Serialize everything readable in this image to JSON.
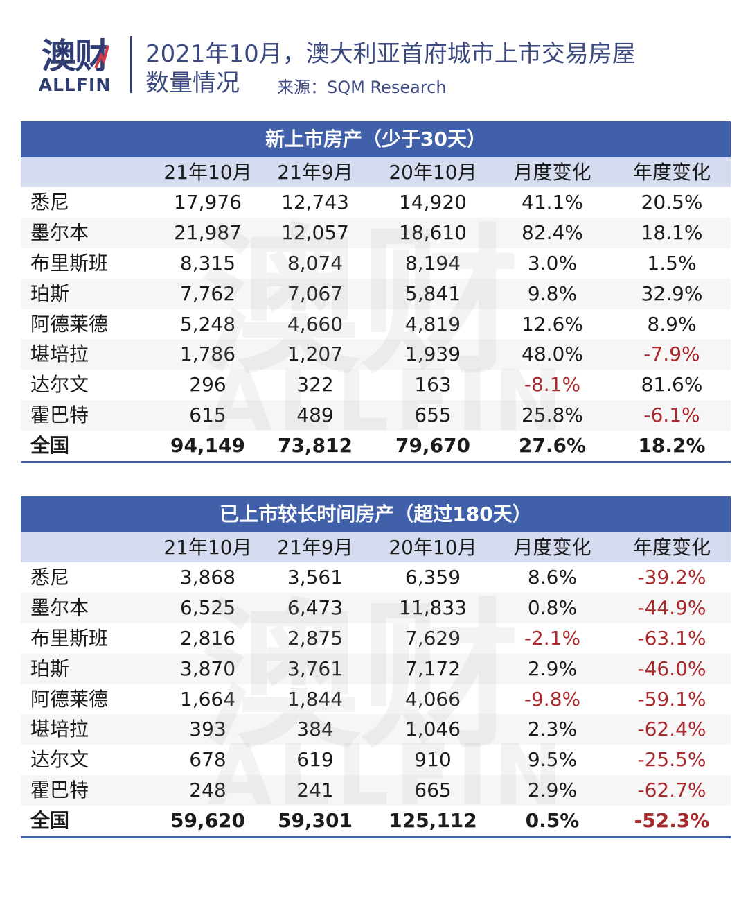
{
  "logo": {
    "cn": "澳财",
    "en": "ALLFIN"
  },
  "title": {
    "line1": "2021年10月，澳大利亚首府城市上市交易房屋",
    "line2": "数量情况",
    "source": "来源：SQM Research"
  },
  "watermark": {
    "cn": "澳财",
    "en": "ALLFIN"
  },
  "colors": {
    "header_bar": "#4160aa",
    "header_row": "#d5dcf0",
    "negative": "#a8282c",
    "brand": "#2f3d73"
  },
  "chart_data": [
    {
      "type": "table",
      "title": "新上市房产（少于30天）",
      "columns": [
        "",
        "21年10月",
        "21年9月",
        "20年10月",
        "月度变化",
        "年度变化"
      ],
      "rows": [
        [
          "悉尼",
          "17,976",
          "12,743",
          "14,920",
          "41.1%",
          "20.5%"
        ],
        [
          "墨尔本",
          "21,987",
          "12,057",
          "18,610",
          "82.4%",
          "18.1%"
        ],
        [
          "布里斯班",
          "8,315",
          "8,074",
          "8,194",
          "3.0%",
          "1.5%"
        ],
        [
          "珀斯",
          "7,762",
          "7,067",
          "5,841",
          "9.8%",
          "32.9%"
        ],
        [
          "阿德莱德",
          "5,248",
          "4,660",
          "4,819",
          "12.6%",
          "8.9%"
        ],
        [
          "堪培拉",
          "1,786",
          "1,207",
          "1,939",
          "48.0%",
          "-7.9%"
        ],
        [
          "达尔文",
          "296",
          "322",
          "163",
          "-8.1%",
          "81.6%"
        ],
        [
          "霍巴特",
          "615",
          "489",
          "655",
          "25.8%",
          "-6.1%"
        ],
        [
          "全国",
          "94,149",
          "73,812",
          "79,670",
          "27.6%",
          "18.2%"
        ]
      ]
    },
    {
      "type": "table",
      "title": "已上市较长时间房产（超过180天）",
      "columns": [
        "",
        "21年10月",
        "21年9月",
        "20年10月",
        "月度变化",
        "年度变化"
      ],
      "rows": [
        [
          "悉尼",
          "3,868",
          "3,561",
          "6,359",
          "8.6%",
          "-39.2%"
        ],
        [
          "墨尔本",
          "6,525",
          "6,473",
          "11,833",
          "0.8%",
          "-44.9%"
        ],
        [
          "布里斯班",
          "2,816",
          "2,875",
          "7,629",
          "-2.1%",
          "-63.1%"
        ],
        [
          "珀斯",
          "3,870",
          "3,761",
          "7,172",
          "2.9%",
          "-46.0%"
        ],
        [
          "阿德莱德",
          "1,664",
          "1,844",
          "4,066",
          "-9.8%",
          "-59.1%"
        ],
        [
          "堪培拉",
          "393",
          "384",
          "1,046",
          "2.3%",
          "-62.4%"
        ],
        [
          "达尔文",
          "678",
          "619",
          "910",
          "9.5%",
          "-25.5%"
        ],
        [
          "霍巴特",
          "248",
          "241",
          "665",
          "2.9%",
          "-62.7%"
        ],
        [
          "全国",
          "59,620",
          "59,301",
          "125,112",
          "0.5%",
          "-52.3%"
        ]
      ]
    }
  ]
}
